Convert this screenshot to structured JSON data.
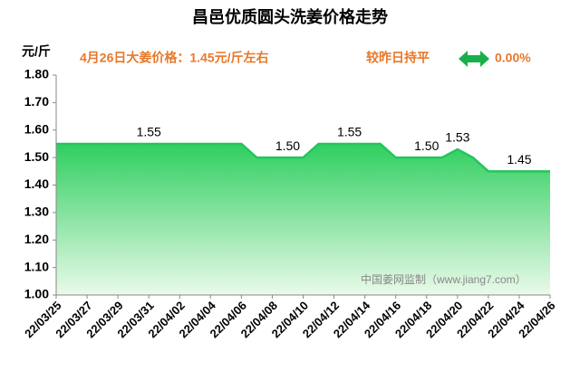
{
  "chart_data": {
    "type": "area",
    "title": "昌邑优质圆头洗姜价格走势",
    "y_axis_label": "元/斤",
    "headline": "4月26日大姜价格：1.45元/斤左右",
    "change_text": "较昨日持平",
    "change_value": "0.00%",
    "watermark": "中国姜网监制（www.jiang7.com）",
    "color": "#22c55e",
    "categories": [
      "22/03/25",
      null,
      "22/03/27",
      null,
      "22/03/29",
      null,
      "22/03/31",
      null,
      "22/04/02",
      null,
      "22/04/04",
      null,
      "22/04/06",
      null,
      "22/04/08",
      null,
      "22/04/10",
      null,
      "22/04/12",
      null,
      "22/04/14",
      null,
      "22/04/16",
      null,
      "22/04/18",
      null,
      "22/04/20",
      null,
      "22/04/22",
      null,
      "22/04/24",
      null,
      "22/04/26"
    ],
    "values": [
      1.55,
      1.55,
      1.55,
      1.55,
      1.55,
      1.55,
      1.55,
      1.55,
      1.55,
      1.55,
      1.55,
      1.55,
      1.55,
      1.5,
      1.5,
      1.5,
      1.5,
      1.55,
      1.55,
      1.55,
      1.55,
      1.55,
      1.5,
      1.5,
      1.5,
      1.5,
      1.53,
      1.5,
      1.45,
      1.45,
      1.45,
      1.45,
      1.45
    ],
    "value_labels": [
      null,
      null,
      null,
      null,
      null,
      null,
      "1.55",
      null,
      null,
      null,
      null,
      null,
      null,
      null,
      null,
      "1.50",
      null,
      null,
      null,
      "1.55",
      null,
      null,
      null,
      null,
      "1.50",
      null,
      "1.53",
      null,
      null,
      null,
      "1.45",
      null,
      null
    ],
    "ylim": [
      1.0,
      1.8
    ],
    "yticks": [
      {
        "value": 1.0,
        "label": "1.00"
      },
      {
        "value": 1.1,
        "label": "1.10"
      },
      {
        "value": 1.2,
        "label": "1.20"
      },
      {
        "value": 1.3,
        "label": "1.30"
      },
      {
        "value": 1.4,
        "label": "1.40"
      },
      {
        "value": 1.5,
        "label": "1.50"
      },
      {
        "value": 1.6,
        "label": "1.60"
      },
      {
        "value": 1.7,
        "label": "1.70"
      },
      {
        "value": 1.8,
        "label": "1.80"
      }
    ],
    "grid": false
  }
}
